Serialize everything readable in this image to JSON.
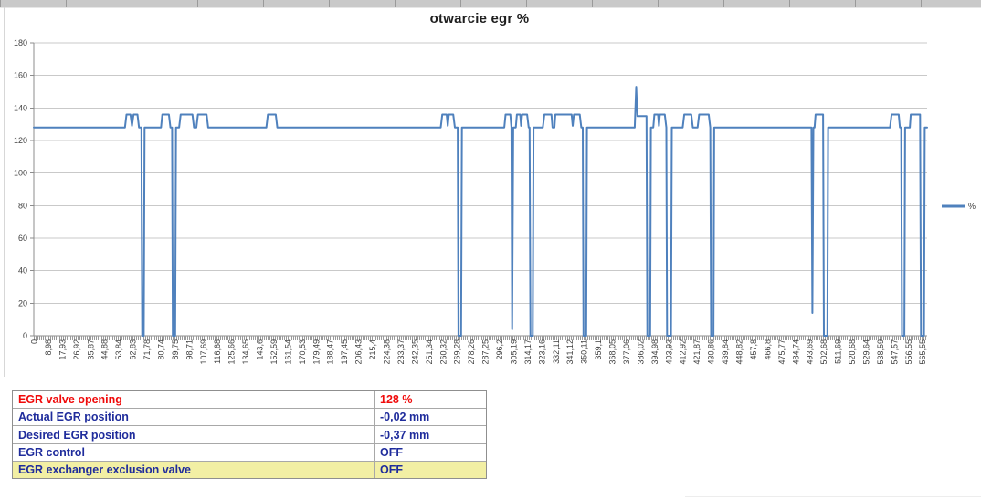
{
  "chart_data": {
    "type": "line",
    "title": "otwarcie egr %",
    "xlabel": "",
    "ylabel": "",
    "ylim": [
      0,
      180
    ],
    "xlim": [
      0,
      568.6
    ],
    "grid": "horizontal",
    "legend_position": "right",
    "y_ticks": [
      0,
      20,
      40,
      60,
      80,
      100,
      120,
      140,
      160,
      180
    ],
    "x_ticks": [
      "0",
      "8,98",
      "17,93",
      "26,92",
      "35,87",
      "44,88",
      "53,84",
      "62,83",
      "71,78",
      "80,74",
      "89,75",
      "98,71",
      "107,69",
      "116,68",
      "125,66",
      "134,65",
      "143,6",
      "152,59",
      "161,54",
      "170,53",
      "179,49",
      "188,47",
      "197,45",
      "206,43",
      "215,4",
      "224,38",
      "233,37",
      "242,35",
      "251,34",
      "260,32",
      "269,28",
      "278,26",
      "287,25",
      "296,2",
      "305,19",
      "314,17",
      "323,16",
      "332,11",
      "341,12",
      "350,11",
      "359,1",
      "368,05",
      "377,06",
      "386,02",
      "394,98",
      "403,93",
      "412,92",
      "421,87",
      "430,86",
      "439,84",
      "448,82",
      "457,8",
      "466,8",
      "475,77",
      "484,74",
      "493,69",
      "502,68",
      "511,69",
      "520,68",
      "529,64",
      "538,59",
      "547,57",
      "556,55",
      "565,55"
    ],
    "series": [
      {
        "name": "%",
        "color": "#4F81BD",
        "points": [
          [
            0,
            128
          ],
          [
            58,
            128
          ],
          [
            59,
            136
          ],
          [
            61.5,
            136
          ],
          [
            62.5,
            129
          ],
          [
            63.5,
            136
          ],
          [
            66,
            136
          ],
          [
            67,
            128
          ],
          [
            68.5,
            128
          ],
          [
            69,
            0
          ],
          [
            70,
            0
          ],
          [
            70.5,
            128
          ],
          [
            81,
            128
          ],
          [
            81.8,
            136
          ],
          [
            86,
            136
          ],
          [
            87,
            128
          ],
          [
            88,
            128
          ],
          [
            88.5,
            0
          ],
          [
            90,
            0
          ],
          [
            90.5,
            128
          ],
          [
            92.5,
            128
          ],
          [
            93.5,
            136
          ],
          [
            101,
            136
          ],
          [
            102,
            128
          ],
          [
            103.5,
            128
          ],
          [
            104.5,
            136
          ],
          [
            110,
            136
          ],
          [
            111,
            128
          ],
          [
            148,
            128
          ],
          [
            149,
            136
          ],
          [
            154,
            136
          ],
          [
            155,
            128
          ],
          [
            259,
            128
          ],
          [
            260,
            136
          ],
          [
            262.8,
            136
          ],
          [
            263.5,
            129
          ],
          [
            264.2,
            136
          ],
          [
            267,
            136
          ],
          [
            268,
            128
          ],
          [
            269.8,
            128
          ],
          [
            270.3,
            0
          ],
          [
            272,
            0
          ],
          [
            272.5,
            128
          ],
          [
            299.5,
            128
          ],
          [
            300.3,
            136
          ],
          [
            303.3,
            136
          ],
          [
            304,
            128
          ],
          [
            304.5,
            4
          ],
          [
            305.2,
            128
          ],
          [
            306.8,
            128
          ],
          [
            307.5,
            136
          ],
          [
            309.6,
            136
          ],
          [
            310.2,
            129
          ],
          [
            310.8,
            136
          ],
          [
            314,
            136
          ],
          [
            315,
            128
          ],
          [
            315.6,
            128
          ],
          [
            316.1,
            0
          ],
          [
            317.6,
            0
          ],
          [
            318.1,
            128
          ],
          [
            324,
            128
          ],
          [
            325,
            136
          ],
          [
            329.5,
            136
          ],
          [
            330.2,
            128
          ],
          [
            331.4,
            128
          ],
          [
            332,
            136
          ],
          [
            342.3,
            136
          ],
          [
            343,
            129
          ],
          [
            343.8,
            136
          ],
          [
            347.5,
            136
          ],
          [
            348.5,
            128
          ],
          [
            349.4,
            128
          ],
          [
            349.9,
            0
          ],
          [
            351.6,
            0
          ],
          [
            352.1,
            128
          ],
          [
            382.5,
            128
          ],
          [
            383.4,
            153
          ],
          [
            384.2,
            135
          ],
          [
            390,
            135
          ],
          [
            390.5,
            0
          ],
          [
            392.3,
            0
          ],
          [
            392.8,
            128
          ],
          [
            394.3,
            128
          ],
          [
            395,
            136
          ],
          [
            397.3,
            136
          ],
          [
            397.9,
            129
          ],
          [
            398.5,
            136
          ],
          [
            401.6,
            136
          ],
          [
            402.6,
            128
          ],
          [
            403.1,
            0
          ],
          [
            405.6,
            0
          ],
          [
            406.1,
            128
          ],
          [
            413,
            128
          ],
          [
            414,
            136
          ],
          [
            418.5,
            136
          ],
          [
            419.5,
            128
          ],
          [
            422.5,
            128
          ],
          [
            423.5,
            136
          ],
          [
            429.6,
            136
          ],
          [
            430.6,
            128
          ],
          [
            431.1,
            0
          ],
          [
            432.6,
            0
          ],
          [
            433.1,
            128
          ],
          [
            495,
            128
          ],
          [
            495.6,
            14
          ],
          [
            496.2,
            128
          ],
          [
            497,
            128
          ],
          [
            497.6,
            136
          ],
          [
            502.4,
            136
          ],
          [
            502.9,
            0
          ],
          [
            505.1,
            0
          ],
          [
            505.6,
            128
          ],
          [
            545,
            128
          ],
          [
            546,
            136
          ],
          [
            550.5,
            136
          ],
          [
            551.3,
            128
          ],
          [
            552.1,
            128
          ],
          [
            552.6,
            0
          ],
          [
            554.1,
            0
          ],
          [
            554.6,
            128
          ],
          [
            557.6,
            128
          ],
          [
            558.2,
            136
          ],
          [
            564.1,
            136
          ],
          [
            564.7,
            0
          ],
          [
            566.6,
            0
          ],
          [
            567.1,
            128
          ],
          [
            568.6,
            128
          ]
        ]
      }
    ]
  },
  "table": {
    "rows": [
      {
        "label": "EGR valve opening",
        "value": "128 %",
        "color": "#f00a0a",
        "highlight": false
      },
      {
        "label": "Actual EGR position",
        "value": "-0,02 mm",
        "color": "#1f2c9c",
        "highlight": false
      },
      {
        "label": "Desired EGR position",
        "value": "-0,37 mm",
        "color": "#1f2c9c",
        "highlight": false
      },
      {
        "label": "EGR control",
        "value": "OFF",
        "color": "#1f2c9c",
        "highlight": false
      },
      {
        "label": "EGR exchanger exclusion valve",
        "value": "OFF",
        "color": "#1f2c9c",
        "highlight": true
      }
    ],
    "highlight_color": "#f2efa4"
  },
  "colors": {
    "series_line": "#4F81BD",
    "gridline": "#c9c9c9",
    "axis": "#8c8c8c",
    "tick_text": "#3f3f3f"
  }
}
